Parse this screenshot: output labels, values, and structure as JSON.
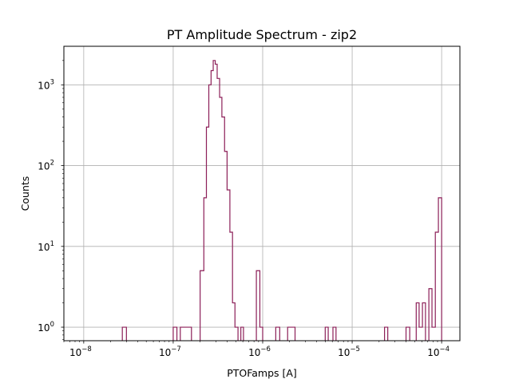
{
  "chart_data": {
    "type": "histogram-step",
    "title": "PT Amplitude Spectrum - zip2",
    "xlabel": "PTOFamps [A]",
    "ylabel": "Counts",
    "xscale": "log",
    "yscale": "log",
    "xlim": [
      6e-09,
      0.00016
    ],
    "ylim": [
      0.68,
      3000
    ],
    "grid": true,
    "line_color": "#8c1f58",
    "x_ticks": [
      {
        "value": 1e-08,
        "base": "10",
        "exp": "−8"
      },
      {
        "value": 1e-07,
        "base": "10",
        "exp": "−7"
      },
      {
        "value": 1e-06,
        "base": "10",
        "exp": "−6"
      },
      {
        "value": 1e-05,
        "base": "10",
        "exp": "−5"
      },
      {
        "value": 0.0001,
        "base": "10",
        "exp": "−4"
      }
    ],
    "y_ticks": [
      {
        "value": 1,
        "base": "10",
        "exp": "0"
      },
      {
        "value": 10,
        "base": "10",
        "exp": "1"
      },
      {
        "value": 100,
        "base": "10",
        "exp": "2"
      },
      {
        "value": 1000,
        "base": "10",
        "exp": "3"
      }
    ],
    "bins": [
      {
        "x0": 2.7e-08,
        "x1": 3e-08,
        "count": 1
      },
      {
        "x0": 1e-07,
        "x1": 1.1e-07,
        "count": 1
      },
      {
        "x0": 1.2e-07,
        "x1": 1.6e-07,
        "count": 1
      },
      {
        "x0": 2e-07,
        "x1": 2.2e-07,
        "count": 5
      },
      {
        "x0": 2.2e-07,
        "x1": 2.35e-07,
        "count": 40
      },
      {
        "x0": 2.35e-07,
        "x1": 2.5e-07,
        "count": 300
      },
      {
        "x0": 2.5e-07,
        "x1": 2.65e-07,
        "count": 1000
      },
      {
        "x0": 2.65e-07,
        "x1": 2.8e-07,
        "count": 1500
      },
      {
        "x0": 2.8e-07,
        "x1": 2.95e-07,
        "count": 2000
      },
      {
        "x0": 2.95e-07,
        "x1": 3.1e-07,
        "count": 1800
      },
      {
        "x0": 3.1e-07,
        "x1": 3.3e-07,
        "count": 1200
      },
      {
        "x0": 3.3e-07,
        "x1": 3.5e-07,
        "count": 700
      },
      {
        "x0": 3.5e-07,
        "x1": 3.75e-07,
        "count": 400
      },
      {
        "x0": 3.75e-07,
        "x1": 4e-07,
        "count": 150
      },
      {
        "x0": 4e-07,
        "x1": 4.3e-07,
        "count": 50
      },
      {
        "x0": 4.3e-07,
        "x1": 4.6e-07,
        "count": 15
      },
      {
        "x0": 4.6e-07,
        "x1": 4.9e-07,
        "count": 2
      },
      {
        "x0": 4.9e-07,
        "x1": 5.3e-07,
        "count": 1
      },
      {
        "x0": 5.7e-07,
        "x1": 6.1e-07,
        "count": 1
      },
      {
        "x0": 8.5e-07,
        "x1": 9.3e-07,
        "count": 5
      },
      {
        "x0": 9.3e-07,
        "x1": 1e-06,
        "count": 1
      },
      {
        "x0": 1.4e-06,
        "x1": 1.55e-06,
        "count": 1
      },
      {
        "x0": 1.9e-06,
        "x1": 2.3e-06,
        "count": 1
      },
      {
        "x0": 5e-06,
        "x1": 5.4e-06,
        "count": 1
      },
      {
        "x0": 6.1e-06,
        "x1": 6.6e-06,
        "count": 1
      },
      {
        "x0": 2.3e-05,
        "x1": 2.5e-05,
        "count": 1
      },
      {
        "x0": 4e-05,
        "x1": 4.4e-05,
        "count": 1
      },
      {
        "x0": 5.2e-05,
        "x1": 5.6e-05,
        "count": 2
      },
      {
        "x0": 5.6e-05,
        "x1": 6.1e-05,
        "count": 1
      },
      {
        "x0": 6.1e-05,
        "x1": 6.6e-05,
        "count": 2
      },
      {
        "x0": 7.2e-05,
        "x1": 7.8e-05,
        "count": 3
      },
      {
        "x0": 7.8e-05,
        "x1": 8.5e-05,
        "count": 1
      },
      {
        "x0": 8.5e-05,
        "x1": 9.2e-05,
        "count": 15
      },
      {
        "x0": 9.2e-05,
        "x1": 0.0001,
        "count": 40
      }
    ]
  }
}
